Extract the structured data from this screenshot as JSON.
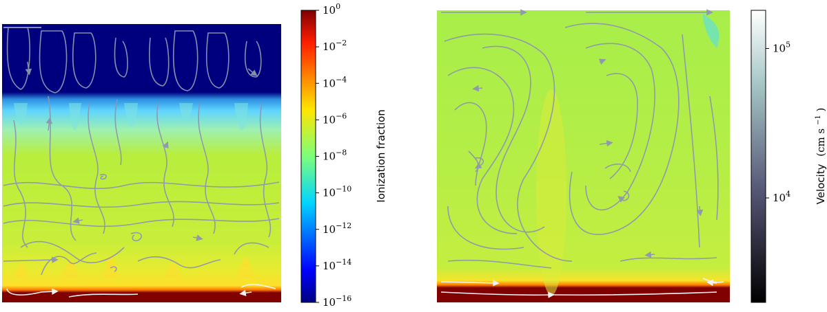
{
  "chart_data": [
    {
      "type": "heatmap",
      "panel": "left",
      "title": "",
      "xlabel": "",
      "ylabel": "",
      "colorbar": {
        "label": "Ionization fraction",
        "scale": "log",
        "colormap": "jet",
        "range": [
          1e-16,
          1
        ],
        "ticks": [
          {
            "base": "10",
            "exp": "0"
          },
          {
            "base": "10",
            "exp": "−2"
          },
          {
            "base": "10",
            "exp": "−4"
          },
          {
            "base": "10",
            "exp": "−6"
          },
          {
            "base": "10",
            "exp": "−8"
          },
          {
            "base": "10",
            "exp": "−10"
          },
          {
            "base": "10",
            "exp": "−12"
          },
          {
            "base": "10",
            "exp": "−14"
          },
          {
            "base": "10",
            "exp": "−16"
          }
        ]
      },
      "field_layers_top_to_bottom": [
        {
          "region": "upper",
          "ionization_fraction": 1e-16
        },
        {
          "region": "transition",
          "ionization_fraction": 1e-11
        },
        {
          "region": "middle",
          "ionization_fraction": 1e-07
        },
        {
          "region": "near-base",
          "ionization_fraction": 1e-05
        },
        {
          "region": "base",
          "ionization_fraction": 1
        }
      ],
      "streamlines": "velocity field, multiple convective rolls",
      "colors": {
        "base": "#800000",
        "middle": "#b8ee3c",
        "upper": "#00007f",
        "transition": "#5fd4ff"
      }
    },
    {
      "type": "heatmap",
      "panel": "right",
      "title": "",
      "xlabel": "",
      "ylabel": "",
      "colorbar": {
        "label_text": "Velocity",
        "label_unit": "(cm s",
        "label_exp": "−1",
        "label_close": ")",
        "scale": "log",
        "colormap": "bone",
        "range": [
          2000,
          180000
        ],
        "ticks": [
          {
            "base": "10",
            "exp": "5",
            "value": 100000
          },
          {
            "base": "10",
            "exp": "4",
            "value": 10000
          }
        ]
      },
      "field_layers_top_to_bottom": [
        {
          "region": "bulk",
          "ionization_fraction": 1e-07
        },
        {
          "region": "base",
          "ionization_fraction": 1
        }
      ],
      "streamlines": "velocity field, two large convective cells",
      "colors": {
        "base": "#800000",
        "bulk": "#a8ee4a"
      }
    }
  ]
}
